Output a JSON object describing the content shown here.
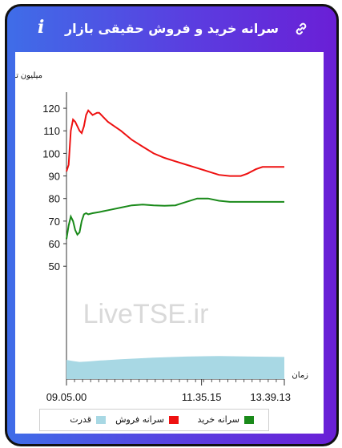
{
  "header": {
    "title": "سرانه خرید و فروش حقیقی بازار",
    "info_icon": "i",
    "link_icon": "link-icon"
  },
  "watermark": "LiveTSE.ir",
  "chart_data": {
    "type": "line",
    "ylabel": "میلیون تومان",
    "xlabel": "زمان",
    "yticks": [
      50,
      60,
      70,
      80,
      90,
      100,
      110,
      120
    ],
    "xticks": [
      "09.05.00",
      "11.35.15",
      "13.39.13"
    ],
    "series": [
      {
        "name": "سرانه فروش",
        "color": "#ee1111",
        "values": [
          [
            0,
            92
          ],
          [
            0.01,
            95
          ],
          [
            0.02,
            110
          ],
          [
            0.03,
            115
          ],
          [
            0.04,
            114
          ],
          [
            0.05,
            112
          ],
          [
            0.06,
            110
          ],
          [
            0.07,
            109
          ],
          [
            0.08,
            112
          ],
          [
            0.09,
            117
          ],
          [
            0.1,
            119
          ],
          [
            0.11,
            118
          ],
          [
            0.12,
            117
          ],
          [
            0.13,
            117.5
          ],
          [
            0.14,
            118
          ],
          [
            0.15,
            118
          ],
          [
            0.16,
            117
          ],
          [
            0.17,
            116
          ],
          [
            0.19,
            114
          ],
          [
            0.22,
            112
          ],
          [
            0.25,
            110
          ],
          [
            0.3,
            106
          ],
          [
            0.35,
            103
          ],
          [
            0.4,
            100
          ],
          [
            0.45,
            98
          ],
          [
            0.5,
            96.5
          ],
          [
            0.55,
            95
          ],
          [
            0.6,
            93.5
          ],
          [
            0.65,
            92
          ],
          [
            0.7,
            90.5
          ],
          [
            0.75,
            90
          ],
          [
            0.8,
            90
          ],
          [
            0.83,
            91
          ],
          [
            0.87,
            93
          ],
          [
            0.9,
            94
          ],
          [
            1,
            94
          ]
        ]
      },
      {
        "name": "سرانه خرید",
        "color": "#1a8a1a",
        "values": [
          [
            0,
            62
          ],
          [
            0.01,
            68
          ],
          [
            0.02,
            72
          ],
          [
            0.03,
            70
          ],
          [
            0.04,
            66
          ],
          [
            0.05,
            64
          ],
          [
            0.06,
            65
          ],
          [
            0.07,
            70
          ],
          [
            0.08,
            73
          ],
          [
            0.09,
            73.5
          ],
          [
            0.1,
            73
          ],
          [
            0.12,
            73.5
          ],
          [
            0.15,
            74
          ],
          [
            0.2,
            75
          ],
          [
            0.25,
            76
          ],
          [
            0.3,
            77
          ],
          [
            0.35,
            77.3
          ],
          [
            0.4,
            77
          ],
          [
            0.45,
            76.8
          ],
          [
            0.5,
            77
          ],
          [
            0.55,
            78.5
          ],
          [
            0.6,
            80
          ],
          [
            0.65,
            80
          ],
          [
            0.7,
            79
          ],
          [
            0.75,
            78.5
          ],
          [
            0.8,
            78.5
          ],
          [
            0.85,
            78.5
          ],
          [
            0.9,
            78.5
          ],
          [
            1,
            78.5
          ]
        ]
      },
      {
        "name": "قدرت",
        "color": "#a8d8e4",
        "type": "area",
        "values": [
          [
            0,
            8.5
          ],
          [
            0.03,
            8
          ],
          [
            0.06,
            7.6
          ],
          [
            0.1,
            7.8
          ],
          [
            0.15,
            8.2
          ],
          [
            0.25,
            8.8
          ],
          [
            0.4,
            9.5
          ],
          [
            0.55,
            10
          ],
          [
            0.7,
            10.2
          ],
          [
            0.85,
            10
          ],
          [
            1,
            9.8
          ]
        ]
      }
    ],
    "legend": [
      {
        "label": "سرانه خرید",
        "color": "#1a8a1a"
      },
      {
        "label": "سرانه فروش",
        "color": "#ee1111"
      },
      {
        "label": "قدرت",
        "color": "#a8d8e4"
      }
    ]
  }
}
